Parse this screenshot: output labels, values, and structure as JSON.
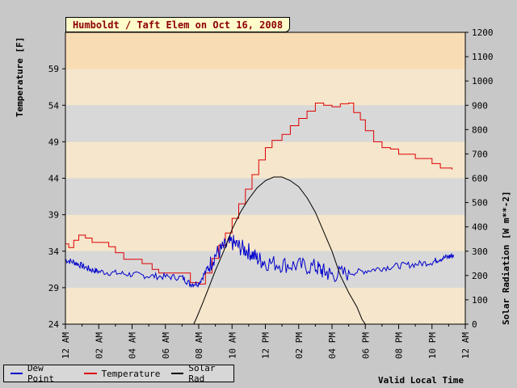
{
  "chart_data": {
    "type": "line",
    "title": "Humboldt / Taft Elem on Oct 16, 2008",
    "xlabel": "Valid Local Time",
    "ylabel_left": "Temperature [F]",
    "ylabel_right": "Solar Radiation [W m**-2]",
    "x_range_hours": [
      0,
      24
    ],
    "x_ticks": [
      {
        "hour": 0,
        "label": "12 AM"
      },
      {
        "hour": 2,
        "label": "02 AM"
      },
      {
        "hour": 4,
        "label": "04 AM"
      },
      {
        "hour": 6,
        "label": "06 AM"
      },
      {
        "hour": 8,
        "label": "08 AM"
      },
      {
        "hour": 10,
        "label": "10 AM"
      },
      {
        "hour": 12,
        "label": "12 PM"
      },
      {
        "hour": 14,
        "label": "02 PM"
      },
      {
        "hour": 16,
        "label": "04 PM"
      },
      {
        "hour": 18,
        "label": "06 PM"
      },
      {
        "hour": 20,
        "label": "08 PM"
      },
      {
        "hour": 22,
        "label": "10 PM"
      },
      {
        "hour": 24,
        "label": "12 AM"
      }
    ],
    "y_left_range": [
      24,
      64
    ],
    "y_left_ticks": [
      24,
      29,
      34,
      39,
      44,
      49,
      54,
      59
    ],
    "y_right_range": [
      0,
      1200
    ],
    "y_right_ticks": [
      0,
      100,
      200,
      300,
      400,
      500,
      600,
      700,
      800,
      900,
      1000,
      1100,
      1200
    ],
    "bands": {
      "light": "#f5e6cc",
      "dark": "#d8d8d8",
      "top": "#f8ddb4"
    },
    "series": [
      {
        "name": "Temperature",
        "color": "#e00000",
        "axis": "left",
        "points": [
          [
            0,
            35
          ],
          [
            0.2,
            34.5
          ],
          [
            0.5,
            35.5
          ],
          [
            0.8,
            36.2
          ],
          [
            1.2,
            35.8
          ],
          [
            1.6,
            35.2
          ],
          [
            2.2,
            35.2
          ],
          [
            2.6,
            34.6
          ],
          [
            3,
            33.8
          ],
          [
            3.5,
            32.9
          ],
          [
            4.4,
            32.9
          ],
          [
            4.6,
            32.3
          ],
          [
            5.2,
            31.5
          ],
          [
            5.6,
            31.0
          ],
          [
            7.2,
            31.0
          ],
          [
            7.5,
            29.7
          ],
          [
            8,
            29.5
          ],
          [
            8.4,
            31.0
          ],
          [
            8.8,
            33.0
          ],
          [
            9.2,
            34.8
          ],
          [
            9.6,
            36.5
          ],
          [
            10,
            38.5
          ],
          [
            10.4,
            40.5
          ],
          [
            10.8,
            42.5
          ],
          [
            11.2,
            44.5
          ],
          [
            11.6,
            46.5
          ],
          [
            12,
            48.2
          ],
          [
            12.4,
            49.2
          ],
          [
            13,
            50.0
          ],
          [
            13.5,
            51.2
          ],
          [
            14,
            52.2
          ],
          [
            14.5,
            53.2
          ],
          [
            15,
            54.3
          ],
          [
            15.5,
            54.0
          ],
          [
            16,
            53.8
          ],
          [
            16.5,
            54.2
          ],
          [
            17,
            54.3
          ],
          [
            17.3,
            53.0
          ],
          [
            17.7,
            52.0
          ],
          [
            18,
            50.5
          ],
          [
            18.5,
            49.0
          ],
          [
            19.0,
            48.2
          ],
          [
            19.5,
            48.0
          ],
          [
            20,
            47.3
          ],
          [
            21,
            46.7
          ],
          [
            22,
            46.0
          ],
          [
            22.5,
            45.4
          ],
          [
            23.2,
            45.2
          ]
        ]
      },
      {
        "name": "Dew Point",
        "color": "#0000cc",
        "axis": "left",
        "points": [
          [
            0,
            32.8
          ],
          [
            0.5,
            32.5
          ],
          [
            1,
            32.0
          ],
          [
            1.5,
            31.5
          ],
          [
            2,
            31.2
          ],
          [
            3,
            31.0
          ],
          [
            4,
            30.8
          ],
          [
            5,
            30.6
          ],
          [
            6,
            30.5
          ],
          [
            7,
            30.4
          ],
          [
            7.5,
            29.5
          ],
          [
            8,
            29.6
          ],
          [
            8.5,
            31.5
          ],
          [
            9,
            33.5
          ],
          [
            9.5,
            34.5
          ],
          [
            10,
            35.2
          ],
          [
            10.5,
            34.5
          ],
          [
            11,
            34.0
          ],
          [
            11.5,
            33.0
          ],
          [
            12,
            32.5
          ],
          [
            13,
            32.2
          ],
          [
            14,
            32.0
          ],
          [
            15,
            31.8
          ],
          [
            15.5,
            31.2
          ],
          [
            16,
            30.8
          ],
          [
            17,
            31.0
          ],
          [
            18,
            31.3
          ],
          [
            19,
            31.7
          ],
          [
            20,
            32.0
          ],
          [
            21,
            32.2
          ],
          [
            22,
            32.5
          ],
          [
            22.5,
            33.0
          ],
          [
            23,
            33.2
          ],
          [
            23.3,
            33.5
          ]
        ]
      },
      {
        "name": "Solar Rad",
        "color": "#000000",
        "axis": "right",
        "points": [
          [
            7.7,
            0
          ],
          [
            7.9,
            30
          ],
          [
            8.2,
            80
          ],
          [
            8.6,
            150
          ],
          [
            9,
            220
          ],
          [
            9.5,
            300
          ],
          [
            10,
            390
          ],
          [
            10.5,
            460
          ],
          [
            11,
            515
          ],
          [
            11.5,
            560
          ],
          [
            12,
            590
          ],
          [
            12.5,
            605
          ],
          [
            13,
            605
          ],
          [
            13.5,
            590
          ],
          [
            14,
            565
          ],
          [
            14.5,
            520
          ],
          [
            15,
            460
          ],
          [
            15.5,
            380
          ],
          [
            16,
            300
          ],
          [
            16.5,
            200
          ],
          [
            17,
            130
          ],
          [
            17.5,
            70
          ],
          [
            17.8,
            20
          ],
          [
            18,
            0
          ],
          [
            18.3,
            0
          ]
        ]
      }
    ],
    "legend_position": "bottom-left"
  }
}
